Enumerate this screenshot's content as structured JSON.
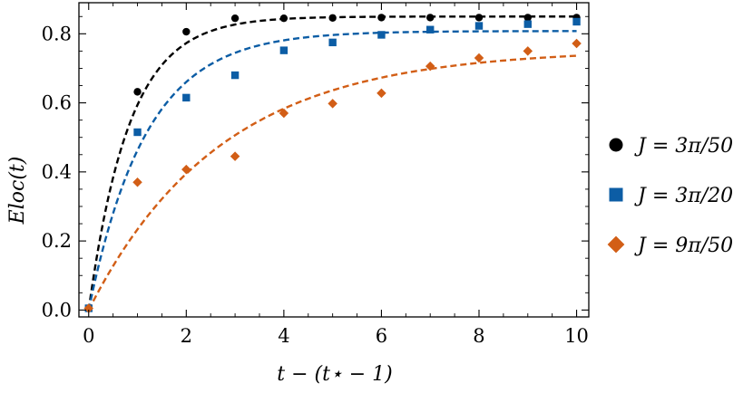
{
  "chart_data": {
    "type": "scatter",
    "xlabel": "t − (t⋆ − 1)",
    "ylabel": "Eloc(t)",
    "xlim": [
      -0.2,
      10.25
    ],
    "ylim": [
      -0.02,
      0.89
    ],
    "xticks": [
      0,
      2,
      4,
      6,
      8,
      10
    ],
    "yticks": [
      0.0,
      0.2,
      0.4,
      0.6,
      0.8
    ],
    "xtick_labels": [
      "0",
      "2",
      "4",
      "6",
      "8",
      "10"
    ],
    "ytick_labels": [
      "0.0",
      "0.2",
      "0.4",
      "0.6",
      "0.8"
    ],
    "grid": false,
    "legend": "outside-right",
    "series": [
      {
        "name": "J = 3π/50",
        "marker": "circle",
        "color": "#000000",
        "x": [
          0,
          1,
          2,
          3,
          4,
          5,
          6,
          7,
          8,
          9,
          10
        ],
        "y": [
          0.005,
          0.632,
          0.806,
          0.845,
          0.845,
          0.846,
          0.847,
          0.847,
          0.847,
          0.847,
          0.847
        ],
        "fit": {
          "plateau": 0.85,
          "rate": 1.2
        }
      },
      {
        "name": "J = 3π/20",
        "marker": "square",
        "color": "#0C5DA5",
        "x": [
          0,
          1,
          2,
          3,
          4,
          5,
          6,
          7,
          8,
          9,
          10
        ],
        "y": [
          0.005,
          0.515,
          0.615,
          0.68,
          0.752,
          0.775,
          0.797,
          0.812,
          0.823,
          0.828,
          0.835
        ],
        "fit": {
          "plateau": 0.808,
          "rate": 0.85
        }
      },
      {
        "name": "J = 9π/50",
        "marker": "diamond",
        "color": "#D25E16",
        "x": [
          0,
          1,
          2,
          3,
          4,
          5,
          6,
          7,
          8,
          9,
          10
        ],
        "y": [
          0.005,
          0.37,
          0.407,
          0.445,
          0.57,
          0.598,
          0.628,
          0.706,
          0.73,
          0.75,
          0.772
        ],
        "fit": {
          "plateau": 0.755,
          "rate": 0.37
        }
      }
    ]
  }
}
